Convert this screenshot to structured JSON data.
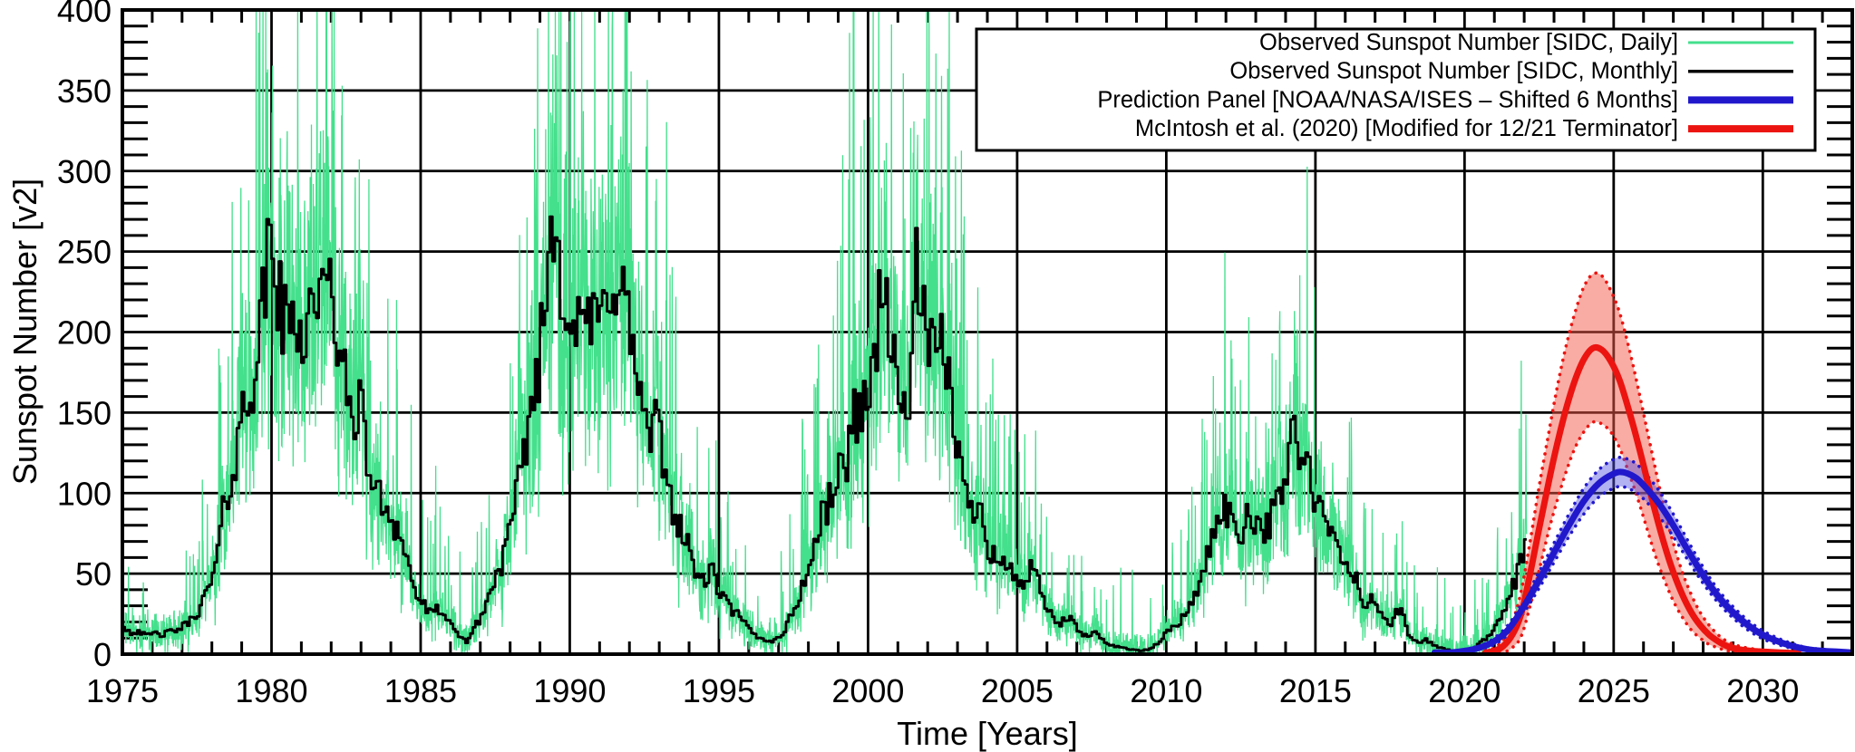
{
  "figure": {
    "background": "#ffffff",
    "frame_color": "#000000",
    "xlabel": "Time [Years]",
    "ylabel": "Sunspot Number [v2]",
    "x_tick_labels": [
      "1975",
      "1980",
      "1985",
      "1990",
      "1995",
      "2000",
      "2005",
      "2010",
      "2015",
      "2020",
      "2025",
      "2030"
    ],
    "y_tick_labels": [
      "0",
      "50",
      "100",
      "150",
      "200",
      "250",
      "300",
      "350",
      "400"
    ],
    "legend_line_widths": [
      3,
      3.5,
      8,
      8
    ]
  },
  "chart_data": {
    "type": "line",
    "title": "",
    "xlabel": "Time [Years]",
    "ylabel": "Sunspot Number [v2]",
    "xlim": [
      1975,
      2033
    ],
    "ylim": [
      0,
      400
    ],
    "x_major_ticks": [
      1975,
      1980,
      1985,
      1990,
      1995,
      2000,
      2005,
      2010,
      2015,
      2020,
      2025,
      2030
    ],
    "x_minor_step_years": 1,
    "y_major_ticks": [
      0,
      50,
      100,
      150,
      200,
      250,
      300,
      350,
      400
    ],
    "y_minor_step": 10,
    "grid": true,
    "legend_position": "top-right",
    "series": [
      {
        "name": "Observed Sunspot Number [SIDC, Daily]",
        "color": "#44E08C",
        "style": "daily_noise_around_monthly",
        "noise": {
          "relative": 0.55,
          "absolute": 13,
          "spike_probability": 0.06,
          "spike_relative": 0.9,
          "spike_absolute": 40,
          "clip_max": 400
        },
        "samples_per_month": 8,
        "x_end": 2022.05
      },
      {
        "name": "Observed Sunspot Number [SIDC, Monthly]",
        "color": "#000000",
        "style": "step",
        "monthly_jitter_relative": 0.14,
        "anchor_points": [
          [
            1975.0,
            18
          ],
          [
            1975.25,
            13
          ],
          [
            1975.5,
            15
          ],
          [
            1975.75,
            11
          ],
          [
            1976.0,
            13
          ],
          [
            1976.3,
            12
          ],
          [
            1976.6,
            14
          ],
          [
            1976.9,
            16
          ],
          [
            1977.2,
            20
          ],
          [
            1977.5,
            27
          ],
          [
            1977.8,
            38
          ],
          [
            1978.1,
            55
          ],
          [
            1978.4,
            95
          ],
          [
            1978.7,
            115
          ],
          [
            1979.0,
            150
          ],
          [
            1979.3,
            170
          ],
          [
            1979.6,
            200
          ],
          [
            1979.95,
            267
          ],
          [
            1980.2,
            218
          ],
          [
            1980.5,
            200
          ],
          [
            1980.8,
            212
          ],
          [
            1981.1,
            198
          ],
          [
            1981.4,
            232
          ],
          [
            1981.7,
            214
          ],
          [
            1982.0,
            228
          ],
          [
            1982.3,
            178
          ],
          [
            1982.6,
            148
          ],
          [
            1982.9,
            158
          ],
          [
            1983.2,
            118
          ],
          [
            1983.5,
            98
          ],
          [
            1983.8,
            92
          ],
          [
            1984.1,
            82
          ],
          [
            1984.4,
            68
          ],
          [
            1984.7,
            42
          ],
          [
            1985.0,
            32
          ],
          [
            1985.3,
            24
          ],
          [
            1985.6,
            29
          ],
          [
            1985.9,
            19
          ],
          [
            1986.2,
            12
          ],
          [
            1986.5,
            8
          ],
          [
            1986.8,
            17
          ],
          [
            1987.1,
            28
          ],
          [
            1987.4,
            44
          ],
          [
            1987.7,
            58
          ],
          [
            1988.0,
            78
          ],
          [
            1988.3,
            108
          ],
          [
            1988.6,
            148
          ],
          [
            1988.9,
            178
          ],
          [
            1989.15,
            218
          ],
          [
            1989.4,
            284
          ],
          [
            1989.65,
            238
          ],
          [
            1989.9,
            222
          ],
          [
            1990.2,
            192
          ],
          [
            1990.5,
            214
          ],
          [
            1990.8,
            198
          ],
          [
            1991.1,
            212
          ],
          [
            1991.4,
            242
          ],
          [
            1991.7,
            228
          ],
          [
            1992.0,
            198
          ],
          [
            1992.3,
            162
          ],
          [
            1992.6,
            132
          ],
          [
            1992.9,
            142
          ],
          [
            1993.2,
            108
          ],
          [
            1993.5,
            88
          ],
          [
            1993.8,
            72
          ],
          [
            1994.1,
            56
          ],
          [
            1994.4,
            44
          ],
          [
            1994.7,
            52
          ],
          [
            1995.0,
            38
          ],
          [
            1995.3,
            29
          ],
          [
            1995.6,
            24
          ],
          [
            1995.9,
            17
          ],
          [
            1996.2,
            11
          ],
          [
            1996.5,
            9
          ],
          [
            1996.8,
            8
          ],
          [
            1997.1,
            13
          ],
          [
            1997.4,
            24
          ],
          [
            1997.7,
            39
          ],
          [
            1998.0,
            54
          ],
          [
            1998.3,
            78
          ],
          [
            1998.6,
            93
          ],
          [
            1998.9,
            108
          ],
          [
            1999.2,
            118
          ],
          [
            1999.5,
            148
          ],
          [
            1999.8,
            158
          ],
          [
            2000.1,
            168
          ],
          [
            2000.45,
            244
          ],
          [
            2000.8,
            178
          ],
          [
            2001.1,
            148
          ],
          [
            2001.35,
            168
          ],
          [
            2001.6,
            237
          ],
          [
            2001.9,
            198
          ],
          [
            2002.2,
            178
          ],
          [
            2002.5,
            188
          ],
          [
            2002.8,
            158
          ],
          [
            2003.1,
            108
          ],
          [
            2003.4,
            88
          ],
          [
            2003.7,
            98
          ],
          [
            2004.0,
            68
          ],
          [
            2004.3,
            58
          ],
          [
            2004.6,
            54
          ],
          [
            2004.9,
            48
          ],
          [
            2005.2,
            44
          ],
          [
            2005.5,
            54
          ],
          [
            2005.8,
            34
          ],
          [
            2006.1,
            24
          ],
          [
            2006.4,
            18
          ],
          [
            2006.7,
            24
          ],
          [
            2007.0,
            14
          ],
          [
            2007.3,
            11
          ],
          [
            2007.6,
            13
          ],
          [
            2007.9,
            8
          ],
          [
            2008.2,
            5
          ],
          [
            2008.5,
            4
          ],
          [
            2008.8,
            3
          ],
          [
            2009.1,
            2
          ],
          [
            2009.4,
            3
          ],
          [
            2009.7,
            7
          ],
          [
            2010.0,
            14
          ],
          [
            2010.3,
            19
          ],
          [
            2010.6,
            24
          ],
          [
            2010.9,
            34
          ],
          [
            2011.2,
            54
          ],
          [
            2011.5,
            68
          ],
          [
            2011.8,
            96
          ],
          [
            2012.1,
            84
          ],
          [
            2012.4,
            74
          ],
          [
            2012.7,
            88
          ],
          [
            2013.0,
            84
          ],
          [
            2013.3,
            78
          ],
          [
            2013.6,
            88
          ],
          [
            2013.9,
            104
          ],
          [
            2014.2,
            145
          ],
          [
            2014.5,
            118
          ],
          [
            2014.8,
            108
          ],
          [
            2015.1,
            88
          ],
          [
            2015.4,
            78
          ],
          [
            2015.7,
            64
          ],
          [
            2016.0,
            54
          ],
          [
            2016.3,
            48
          ],
          [
            2016.6,
            29
          ],
          [
            2016.9,
            34
          ],
          [
            2017.2,
            24
          ],
          [
            2017.5,
            19
          ],
          [
            2017.8,
            29
          ],
          [
            2018.1,
            11
          ],
          [
            2018.4,
            7
          ],
          [
            2018.7,
            9
          ],
          [
            2019.0,
            5
          ],
          [
            2019.3,
            3
          ],
          [
            2019.6,
            2
          ],
          [
            2019.9,
            2
          ],
          [
            2020.2,
            3
          ],
          [
            2020.5,
            7
          ],
          [
            2020.8,
            11
          ],
          [
            2021.1,
            19
          ],
          [
            2021.4,
            34
          ],
          [
            2021.7,
            48
          ],
          [
            2021.95,
            67
          ],
          [
            2022.05,
            70
          ]
        ]
      },
      {
        "name": "Prediction Panel [NOAA/NASA/ISES – Shifted 6 Months]",
        "color": "#2118CC",
        "band_fill": "#5552E0",
        "band_fill_opacity": 0.45,
        "style": "smooth_with_band",
        "points_year_mid_halfwidth": [
          [
            2019.0,
            1,
            0
          ],
          [
            2019.5,
            1,
            0
          ],
          [
            2020.0,
            2,
            0.5
          ],
          [
            2020.5,
            4,
            1
          ],
          [
            2021.0,
            8,
            2
          ],
          [
            2021.5,
            16,
            3
          ],
          [
            2022.0,
            30,
            4
          ],
          [
            2022.5,
            46,
            5
          ],
          [
            2023.0,
            63,
            6
          ],
          [
            2023.5,
            80,
            7
          ],
          [
            2024.0,
            95,
            8
          ],
          [
            2024.5,
            106,
            8.5
          ],
          [
            2025.0,
            112,
            9
          ],
          [
            2025.3,
            113,
            9
          ],
          [
            2025.7,
            110,
            9
          ],
          [
            2026.0,
            105,
            8.5
          ],
          [
            2026.5,
            94,
            8
          ],
          [
            2027.0,
            80,
            7
          ],
          [
            2027.5,
            64,
            6
          ],
          [
            2028.0,
            49,
            5
          ],
          [
            2028.5,
            36,
            4
          ],
          [
            2029.0,
            26,
            3.5
          ],
          [
            2029.5,
            18,
            3
          ],
          [
            2030.0,
            12,
            2.5
          ],
          [
            2030.5,
            8,
            2
          ],
          [
            2031.0,
            5,
            1.5
          ],
          [
            2031.5,
            3,
            1
          ],
          [
            2032.0,
            2,
            1
          ],
          [
            2032.5,
            1.5,
            0.5
          ],
          [
            2033.0,
            1,
            0.5
          ]
        ]
      },
      {
        "name": "McIntosh et al. (2020) [Modified for 12/21 Terminator]",
        "color": "#EC1410",
        "band_fill": "#F4594A",
        "band_fill_opacity": 0.5,
        "style": "smooth_with_band",
        "points_year_mid_halfwidth": [
          [
            2020.7,
            1,
            1
          ],
          [
            2021.0,
            2,
            2
          ],
          [
            2021.3,
            5,
            4
          ],
          [
            2021.6,
            12,
            8
          ],
          [
            2021.9,
            25,
            14
          ],
          [
            2022.2,
            50,
            20
          ],
          [
            2022.5,
            78,
            26
          ],
          [
            2022.8,
            105,
            30
          ],
          [
            2023.1,
            130,
            35
          ],
          [
            2023.4,
            152,
            39
          ],
          [
            2023.7,
            170,
            42
          ],
          [
            2024.0,
            183,
            45
          ],
          [
            2024.3,
            190,
            46
          ],
          [
            2024.6,
            189,
            46
          ],
          [
            2024.9,
            182,
            44
          ],
          [
            2025.2,
            170,
            42
          ],
          [
            2025.5,
            152,
            39
          ],
          [
            2025.8,
            132,
            35
          ],
          [
            2026.1,
            110,
            31
          ],
          [
            2026.4,
            88,
            27
          ],
          [
            2026.7,
            68,
            22
          ],
          [
            2027.0,
            51,
            18
          ],
          [
            2027.3,
            37,
            14
          ],
          [
            2027.6,
            26,
            11
          ],
          [
            2027.9,
            18,
            8
          ],
          [
            2028.2,
            12,
            6
          ],
          [
            2028.5,
            8,
            4
          ],
          [
            2028.8,
            5,
            3
          ],
          [
            2029.2,
            3,
            2
          ],
          [
            2029.6,
            2,
            1.5
          ],
          [
            2030.0,
            1.5,
            1
          ],
          [
            2030.6,
            1,
            0.8
          ],
          [
            2031.2,
            0.5,
            0.5
          ]
        ]
      }
    ]
  }
}
